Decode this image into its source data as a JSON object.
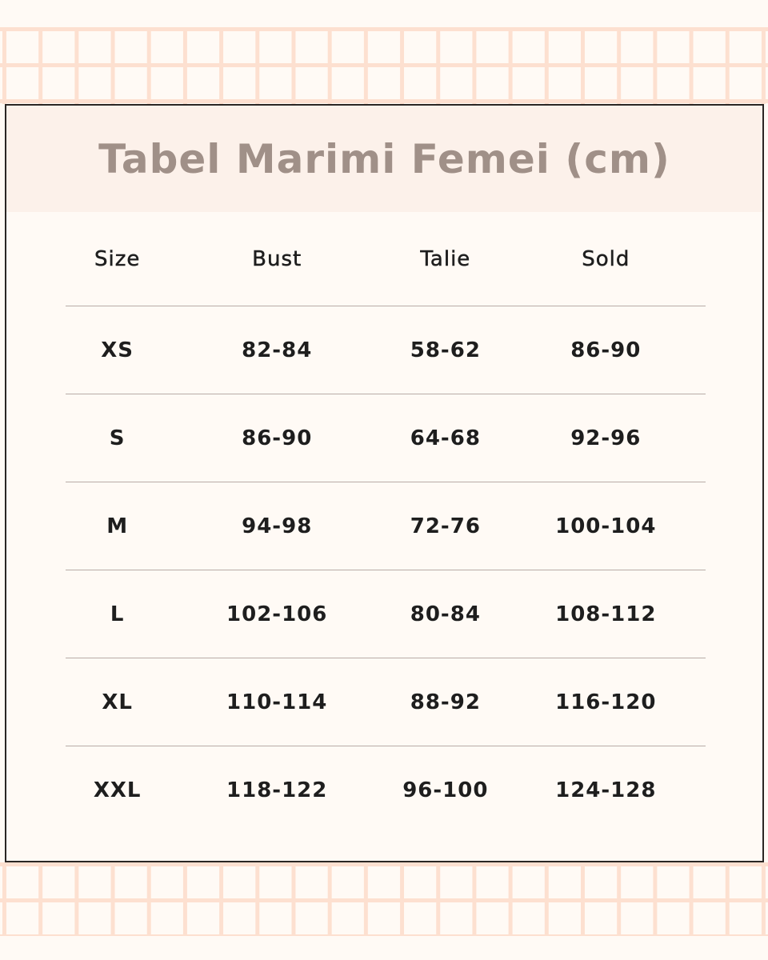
{
  "title": "Tabel Marimi Femei (cm)",
  "columns": [
    "Size",
    "Bust",
    "Talie",
    "Sold"
  ],
  "rows": [
    [
      "XS",
      "82-84",
      "58-62",
      "86-90"
    ],
    [
      "S",
      "86-90",
      "64-68",
      "92-96"
    ],
    [
      "M",
      "94-98",
      "72-76",
      "100-104"
    ],
    [
      "L",
      "102-106",
      "80-84",
      "108-112"
    ],
    [
      "XL",
      "110-114",
      "88-92",
      "116-120"
    ],
    [
      "XXL",
      "118-122",
      "96-100",
      "124-128"
    ]
  ],
  "colors": {
    "grid": "#fde0d0",
    "header_band": "#fcf1ea",
    "title": "#a09088",
    "border": "#2a2624",
    "background": "#fffaf5"
  }
}
